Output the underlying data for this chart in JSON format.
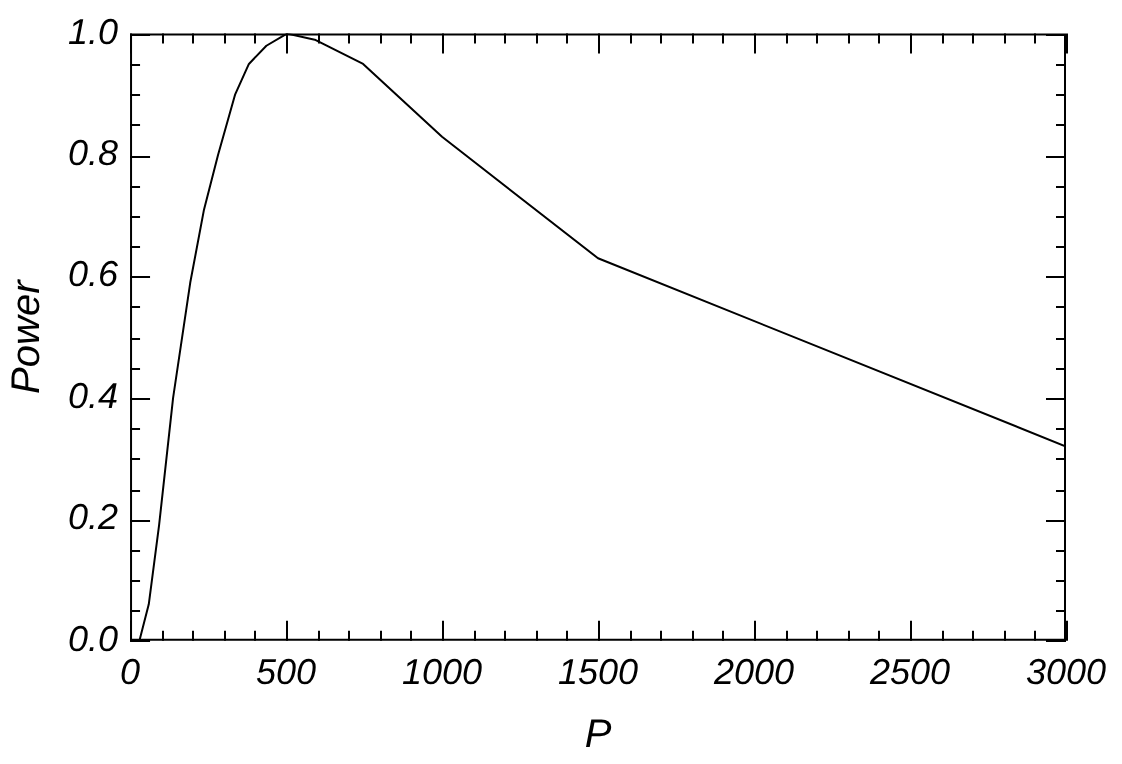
{
  "chart_data": {
    "type": "line",
    "xlabel": "P",
    "ylabel": "Power",
    "x": [
      0,
      30,
      60,
      93,
      138,
      193,
      237,
      282,
      337,
      381,
      437,
      503,
      592,
      747,
      1000,
      1500,
      3000
    ],
    "series": [
      {
        "color": "#000000",
        "values": [
          0,
          0,
          0.06,
          0.19,
          0.4,
          0.59,
          0.71,
          0.8,
          0.9,
          0.95,
          0.98,
          1.0,
          0.99,
          0.95,
          0.83,
          0.63,
          0.32
        ]
      }
    ],
    "xlim": [
      0,
      3000
    ],
    "xticks": [
      0,
      {
        "value": 100,
        "label": null
      },
      {
        "value": 200,
        "label": null
      },
      {
        "value": 300,
        "label": null
      },
      {
        "value": 400,
        "label": null
      },
      500,
      {
        "value": 600,
        "label": null
      },
      {
        "value": 700,
        "label": null
      },
      {
        "value": 800,
        "label": null
      },
      {
        "value": 900,
        "label": null
      },
      1000,
      {
        "value": 1100,
        "label": null
      },
      {
        "value": 1200,
        "label": null
      },
      {
        "value": 1300,
        "label": null
      },
      {
        "value": 1400,
        "label": null
      },
      1500,
      {
        "value": 1600,
        "label": null
      },
      {
        "value": 1700,
        "label": null
      },
      {
        "value": 1800,
        "label": null
      },
      {
        "value": 1900,
        "label": null
      },
      2000,
      {
        "value": 2100,
        "label": null
      },
      {
        "value": 2200,
        "label": null
      },
      {
        "value": 2300,
        "label": null
      },
      {
        "value": 2400,
        "label": null
      },
      2500,
      {
        "value": 2600,
        "label": null
      },
      {
        "value": 2700,
        "label": null
      },
      {
        "value": 2800,
        "label": null
      },
      {
        "value": 2900,
        "label": null
      },
      3000
    ],
    "ylim": [
      0,
      1
    ],
    "yticks": [
      {
        "value": 0,
        "label": "0.0"
      },
      {
        "value": 0.05,
        "label": null
      },
      {
        "value": 0.1,
        "label": null
      },
      {
        "value": 0.15,
        "label": null
      },
      0.2,
      {
        "value": 0.25,
        "label": null
      },
      {
        "value": 0.3,
        "label": null
      },
      {
        "value": 0.35,
        "label": null
      },
      0.4,
      {
        "value": 0.45,
        "label": null
      },
      {
        "value": 0.5,
        "label": null
      },
      {
        "value": 0.55,
        "label": null
      },
      0.6,
      {
        "value": 0.65,
        "label": null
      },
      {
        "value": 0.7,
        "label": null
      },
      {
        "value": 0.75,
        "label": null
      },
      0.8,
      {
        "value": 0.85,
        "label": null
      },
      {
        "value": 0.9,
        "label": null
      },
      {
        "value": 0.95,
        "label": null
      },
      {
        "value": 1,
        "label": "1.0"
      }
    ],
    "marker": "none",
    "line_style": "solid",
    "legend": false
  }
}
